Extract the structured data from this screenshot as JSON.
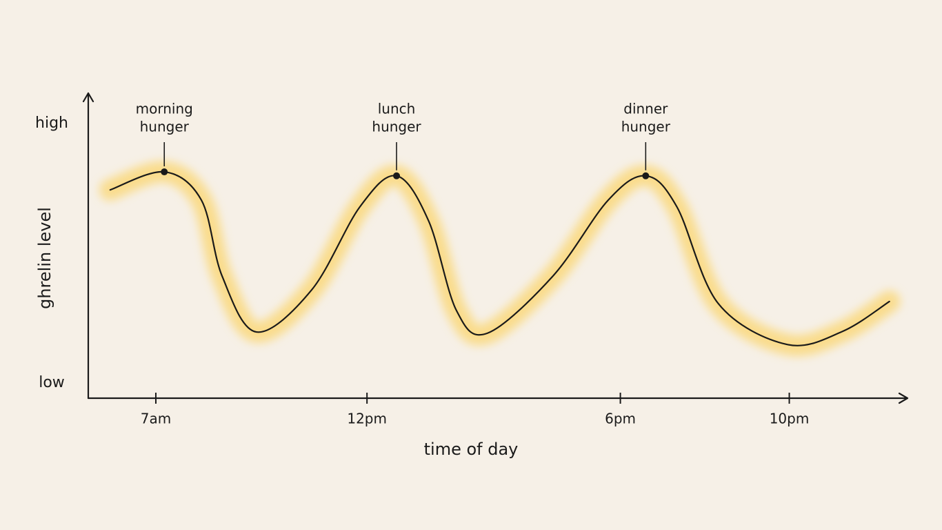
{
  "chart_data": {
    "type": "line",
    "x_label": "time of day",
    "y_label": "ghrelin level",
    "xlim": [
      5.4,
      24.8
    ],
    "xticks": [
      {
        "value": 7,
        "label": "7am"
      },
      {
        "value": 12,
        "label": "12pm"
      },
      {
        "value": 18,
        "label": "6pm"
      },
      {
        "value": 22,
        "label": "10pm"
      }
    ],
    "ylim": [
      0,
      10
    ],
    "yticks": [
      {
        "value": 0.5,
        "label": "low"
      },
      {
        "value": 9,
        "label": "high"
      }
    ],
    "series": [
      {
        "color": "#1a1a1a",
        "glow_color": "#fcd56b",
        "x": [
          5.92,
          7.2,
          8.08,
          8.57,
          9.38,
          10.69,
          11.83,
          12.7,
          13.46,
          14.12,
          14.85,
          16.4,
          17.71,
          18.6,
          19.34,
          20.32,
          21.95,
          23.26,
          24.37
        ],
        "values": [
          6.83,
          7.42,
          6.49,
          4.0,
          2.17,
          3.55,
          6.27,
          7.29,
          5.81,
          2.87,
          2.13,
          4.0,
          6.49,
          7.29,
          6.27,
          3.1,
          1.76,
          2.19,
          3.17
        ]
      }
    ],
    "annotations": [
      {
        "lines": [
          "morning",
          "hunger"
        ],
        "x": 7.2,
        "y": 7.42
      },
      {
        "lines": [
          "lunch",
          "hunger"
        ],
        "x": 12.7,
        "y": 7.29
      },
      {
        "lines": [
          "dinner",
          "hunger"
        ],
        "x": 18.6,
        "y": 7.29
      }
    ]
  }
}
